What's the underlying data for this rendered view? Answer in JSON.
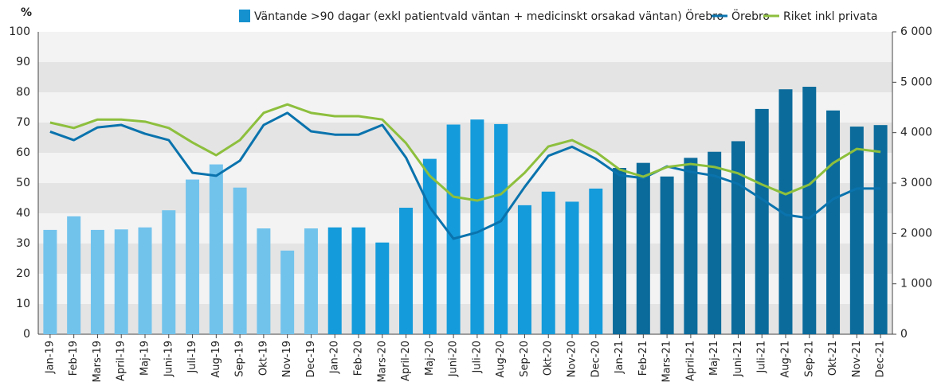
{
  "chart_data": {
    "type": "bar-line",
    "y_label": "%",
    "categories": [
      "Jan-19",
      "Feb-19",
      "Mars-19",
      "April-19",
      "Maj-19",
      "Juni-19",
      "Juli-19",
      "Aug-19",
      "Sep-19",
      "Okt-19",
      "Nov-19",
      "Dec-19",
      "Jan-20",
      "Feb-20",
      "Mars-20",
      "April-20",
      "Maj-20",
      "Juni-20",
      "Juli-20",
      "Aug-20",
      "Sep-20",
      "Okt-20",
      "Nov-20",
      "Dec-20",
      "Jan-21",
      "Feb-21",
      "Mars-21",
      "April-21",
      "Maj-21",
      "Juni-21",
      "Juli-21",
      "Aug-21",
      "Sep-21",
      "Okt-21",
      "Nov-21",
      "Dec-21"
    ],
    "series": [
      {
        "name": "Väntande >90 dagar (exkl patientvald väntan + medicinskt orsakad väntan) Örebro",
        "type": "bar",
        "axis": "y2",
        "color": "#1591cf",
        "colors": [
          "#72c3ec",
          "#72c3ec",
          "#72c3ec",
          "#72c3ec",
          "#72c3ec",
          "#72c3ec",
          "#72c3ec",
          "#72c3ec",
          "#72c3ec",
          "#72c3ec",
          "#72c3ec",
          "#72c3ec",
          "#149bdb",
          "#149bdb",
          "#149bdb",
          "#149bdb",
          "#149bdb",
          "#149bdb",
          "#149bdb",
          "#149bdb",
          "#149bdb",
          "#149bdb",
          "#149bdb",
          "#149bdb",
          "#0b6b9b",
          "#0b6b9b",
          "#0b6b9b",
          "#0b6b9b",
          "#0b6b9b",
          "#0b6b9b",
          "#0b6b9b",
          "#0b6b9b",
          "#0b6b9b",
          "#0b6b9b",
          "#0b6b9b",
          "#0b6b9b"
        ],
        "values": [
          2070,
          2340,
          2070,
          2080,
          2120,
          2460,
          3070,
          3370,
          2910,
          2100,
          1660,
          2100,
          2120,
          2120,
          1820,
          2510,
          3480,
          4160,
          4260,
          4170,
          2560,
          2830,
          2630,
          2890,
          3300,
          3400,
          3130,
          3500,
          3620,
          3830,
          4470,
          4860,
          4910,
          4440,
          4120,
          4150
        ]
      },
      {
        "name": "Örebro",
        "type": "line",
        "color": "#0a73ad",
        "values": [
          67,
          64.2,
          68.4,
          69.2,
          66.3,
          64.2,
          53.4,
          52.4,
          57.4,
          69.2,
          73.2,
          67.1,
          66,
          66,
          69.2,
          58.4,
          42,
          31.6,
          33.7,
          37.4,
          48.7,
          59,
          62,
          58,
          52.6,
          51.6,
          55.5,
          53.7,
          52.4,
          49.7,
          44.7,
          39.5,
          38.4,
          44.7,
          48.2,
          48.2
        ]
      },
      {
        "name": "Riket inkl privata",
        "type": "line",
        "color": "#8dbf3d",
        "values": [
          70,
          68.2,
          71,
          71,
          70.3,
          68.2,
          63.4,
          59.2,
          64.2,
          73.2,
          76,
          73.2,
          72.1,
          72.1,
          71,
          63.2,
          52.4,
          45.5,
          44.2,
          46.3,
          53.4,
          62.1,
          64.2,
          60.3,
          54.5,
          52.1,
          55.3,
          56.3,
          55.3,
          53.2,
          49.5,
          46.3,
          49.5,
          56.6,
          61.3,
          60.3
        ]
      }
    ],
    "ylim": [
      0,
      100
    ],
    "yticks": [
      0,
      10,
      20,
      30,
      40,
      50,
      60,
      70,
      80,
      90,
      100
    ],
    "y2lim": [
      0,
      6000
    ],
    "y2ticks": [
      0,
      {
        "value": 1000,
        "label": "1 000"
      },
      {
        "value": 2000,
        "label": "2 000"
      },
      {
        "value": 3000,
        "label": "3 000"
      },
      {
        "value": 4000,
        "label": "4 000"
      },
      {
        "value": 5000,
        "label": "5 000"
      },
      {
        "value": 6000,
        "label": "6 000"
      }
    ],
    "grid": true,
    "legend": "top-right"
  }
}
